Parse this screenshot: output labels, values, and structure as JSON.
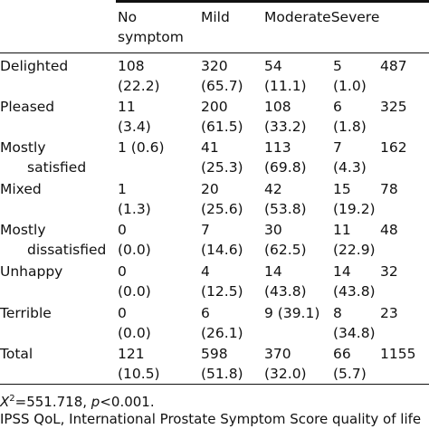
{
  "table": {
    "headers": [
      {
        "line1": "No",
        "line2": "symptom"
      },
      {
        "line1": "Mild",
        "line2": ""
      },
      {
        "line1": "ModerateSevere",
        "line2": ""
      }
    ],
    "rows": [
      {
        "label1": "Delighted",
        "label2": "",
        "cells": [
          [
            "108",
            "(22.2)"
          ],
          [
            "320",
            "(65.7)"
          ],
          [
            "54",
            "(11.1)"
          ],
          [
            "5",
            "(1.0)"
          ],
          [
            "487",
            ""
          ]
        ]
      },
      {
        "label1": "Pleased",
        "label2": "",
        "cells": [
          [
            "11",
            "(3.4)"
          ],
          [
            "200",
            "(61.5)"
          ],
          [
            "108",
            "(33.2)"
          ],
          [
            "6",
            "(1.8)"
          ],
          [
            "325",
            ""
          ]
        ]
      },
      {
        "label1": "Mostly",
        "label2": "satisfied",
        "cells": [
          [
            "1 (0.6)",
            ""
          ],
          [
            "41",
            "(25.3)"
          ],
          [
            "113",
            "(69.8)"
          ],
          [
            "7",
            "(4.3)"
          ],
          [
            "162",
            ""
          ]
        ]
      },
      {
        "label1": "Mixed",
        "label2": "",
        "cells": [
          [
            "1",
            "(1.3)"
          ],
          [
            "20",
            "(25.6)"
          ],
          [
            "42",
            "(53.8)"
          ],
          [
            "15",
            "(19.2)"
          ],
          [
            "78",
            ""
          ]
        ]
      },
      {
        "label1": "Mostly",
        "label2": "dissatisfied",
        "cells": [
          [
            "0",
            "(0.0)"
          ],
          [
            "7",
            "(14.6)"
          ],
          [
            "30",
            "(62.5)"
          ],
          [
            "11",
            "(22.9)"
          ],
          [
            "48",
            ""
          ]
        ]
      },
      {
        "label1": "Unhappy",
        "label2": "",
        "cells": [
          [
            "0",
            "(0.0)"
          ],
          [
            "4",
            "(12.5)"
          ],
          [
            "14",
            "(43.8)"
          ],
          [
            "14",
            "(43.8)"
          ],
          [
            "32",
            ""
          ]
        ]
      },
      {
        "label1": "Terrible",
        "label2": "",
        "cells": [
          [
            "0",
            "(0.0)"
          ],
          [
            "6",
            "(26.1)"
          ],
          [
            "9 (39.1)",
            ""
          ],
          [
            "8",
            "(34.8)"
          ],
          [
            "23",
            ""
          ]
        ]
      },
      {
        "label1": "Total",
        "label2": "",
        "cells": [
          [
            "121",
            "(10.5)"
          ],
          [
            "598",
            "(51.8)"
          ],
          [
            "370",
            "(32.0)"
          ],
          [
            "66",
            "(5.7)"
          ],
          [
            "1155",
            ""
          ]
        ]
      }
    ]
  },
  "footnote": {
    "chi_symbol": "X",
    "chi_sup": "2",
    "chi_value": "=551.718, ",
    "p_symbol": "p",
    "p_value": "<0.001.",
    "abbreviation": "IPSS QoL, International Prostate Symptom Score quality of life"
  }
}
